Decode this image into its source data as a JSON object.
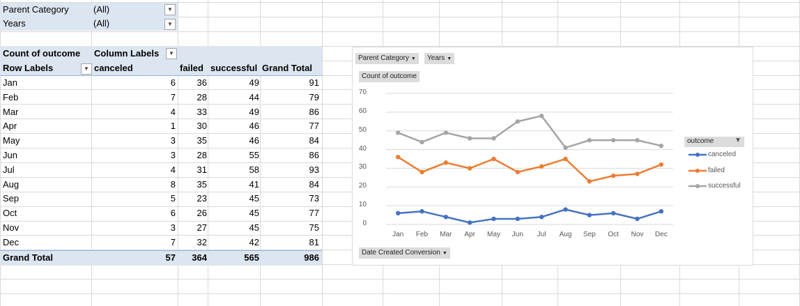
{
  "filters": [
    {
      "label": "Parent Category",
      "value": "(All)"
    },
    {
      "label": "Years",
      "value": "(All)"
    }
  ],
  "pivot": {
    "corner_label": "Count of outcome",
    "column_labels": "Column Labels",
    "row_labels": "Row Labels",
    "col_headers": [
      "canceled",
      "failed",
      "successful",
      "Grand Total"
    ],
    "rows": [
      {
        "label": "Jan",
        "values": [
          "6",
          "36",
          "49",
          "91"
        ]
      },
      {
        "label": "Feb",
        "values": [
          "7",
          "28",
          "44",
          "79"
        ]
      },
      {
        "label": "Mar",
        "values": [
          "4",
          "33",
          "49",
          "86"
        ]
      },
      {
        "label": "Apr",
        "values": [
          "1",
          "30",
          "46",
          "77"
        ]
      },
      {
        "label": "May",
        "values": [
          "3",
          "35",
          "46",
          "84"
        ]
      },
      {
        "label": "Jun",
        "values": [
          "3",
          "28",
          "55",
          "86"
        ]
      },
      {
        "label": "Jul",
        "values": [
          "4",
          "31",
          "58",
          "93"
        ]
      },
      {
        "label": "Aug",
        "values": [
          "8",
          "35",
          "41",
          "84"
        ]
      },
      {
        "label": "Sep",
        "values": [
          "5",
          "23",
          "45",
          "73"
        ]
      },
      {
        "label": "Oct",
        "values": [
          "6",
          "26",
          "45",
          "77"
        ]
      },
      {
        "label": "Nov",
        "values": [
          "3",
          "27",
          "45",
          "75"
        ]
      },
      {
        "label": "Dec",
        "values": [
          "7",
          "32",
          "42",
          "81"
        ]
      }
    ],
    "grand_total": {
      "label": "Grand Total",
      "values": [
        "57",
        "364",
        "565",
        "986"
      ]
    }
  },
  "chart": {
    "buttons": {
      "parent_category": "Parent Category",
      "years": "Years",
      "value_field": "Count of outcome",
      "axis_field": "Date Created Conversion"
    },
    "legend_title": "outcome"
  },
  "chart_data": {
    "type": "line",
    "categories": [
      "Jan",
      "Feb",
      "Mar",
      "Apr",
      "May",
      "Jun",
      "Jul",
      "Aug",
      "Sep",
      "Oct",
      "Nov",
      "Dec"
    ],
    "series": [
      {
        "name": "canceled",
        "color": "#4472c4",
        "values": [
          6,
          7,
          4,
          1,
          3,
          3,
          4,
          8,
          5,
          6,
          3,
          7
        ]
      },
      {
        "name": "failed",
        "color": "#ed7d31",
        "values": [
          36,
          28,
          33,
          30,
          35,
          28,
          31,
          35,
          23,
          26,
          27,
          32
        ]
      },
      {
        "name": "successful",
        "color": "#a5a5a5",
        "values": [
          49,
          44,
          49,
          46,
          46,
          55,
          58,
          41,
          45,
          45,
          45,
          42
        ]
      }
    ],
    "yticks": [
      "0",
      "10",
      "20",
      "30",
      "40",
      "50",
      "60",
      "70"
    ],
    "ylim": [
      0,
      70
    ],
    "grid": true,
    "legend": "right"
  }
}
